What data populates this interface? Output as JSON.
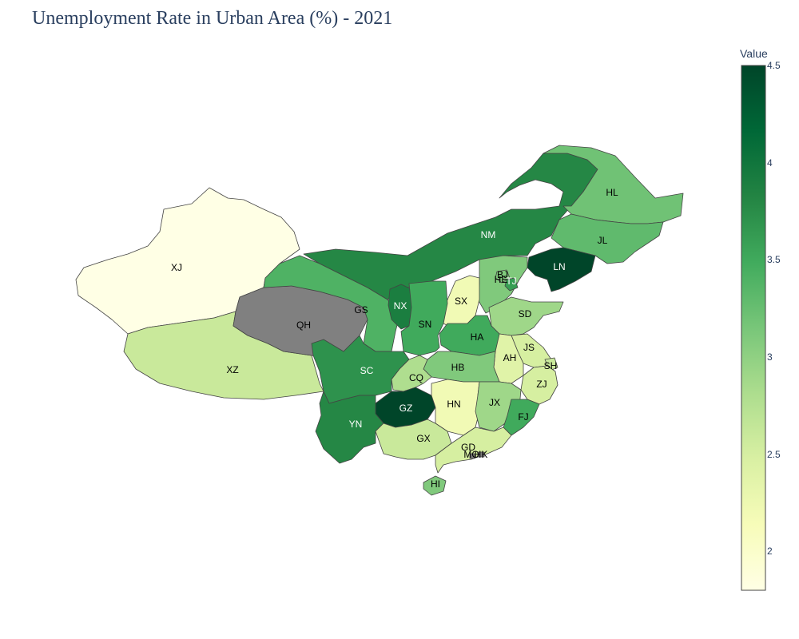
{
  "title": "Unemployment Rate in Urban Area (%) - 2021",
  "colorbar": {
    "title": "Value",
    "min": 1.8,
    "max": 4.5,
    "ticks": [
      "2",
      "2.5",
      "3",
      "3.5",
      "4",
      "4.5"
    ],
    "tick_values": [
      2,
      2.5,
      3,
      3.5,
      4,
      4.5
    ],
    "colorscale": [
      "#ffffe5",
      "#f7fcb9",
      "#d9f0a3",
      "#addd8e",
      "#78c679",
      "#41ab5d",
      "#238443",
      "#006837",
      "#004529"
    ],
    "missing_color": "#808080"
  },
  "regions": [
    {
      "code": "XJ",
      "value": 1.8
    },
    {
      "code": "XZ",
      "value": 2.6
    },
    {
      "code": "QH",
      "value": null
    },
    {
      "code": "GS",
      "value": 3.4
    },
    {
      "code": "NM",
      "value": 3.8
    },
    {
      "code": "HL",
      "value": 3.2
    },
    {
      "code": "JL",
      "value": 3.3
    },
    {
      "code": "LN",
      "value": 4.5
    },
    {
      "code": "BJ",
      "value": 3.1
    },
    {
      "code": "TJ",
      "value": 3.6
    },
    {
      "code": "HE",
      "value": 3.1
    },
    {
      "code": "SX",
      "value": 2.2
    },
    {
      "code": "NX",
      "value": 3.9
    },
    {
      "code": "SN",
      "value": 3.5
    },
    {
      "code": "SD",
      "value": 2.9
    },
    {
      "code": "HA",
      "value": 3.5
    },
    {
      "code": "JS",
      "value": 2.5
    },
    {
      "code": "AH",
      "value": 2.4
    },
    {
      "code": "SH",
      "value": 2.6
    },
    {
      "code": "HB",
      "value": 3.1
    },
    {
      "code": "ZJ",
      "value": 2.5
    },
    {
      "code": "SC",
      "value": 3.7
    },
    {
      "code": "CQ",
      "value": 2.8
    },
    {
      "code": "GZ",
      "value": 4.5
    },
    {
      "code": "HN",
      "value": 2.2
    },
    {
      "code": "JX",
      "value": 2.9
    },
    {
      "code": "FJ",
      "value": 3.5
    },
    {
      "code": "YN",
      "value": 3.8
    },
    {
      "code": "GX",
      "value": 2.6
    },
    {
      "code": "GD",
      "value": 2.5
    },
    {
      "code": "HK",
      "value": null
    },
    {
      "code": "MO",
      "value": null
    },
    {
      "code": "HI",
      "value": 3.1
    }
  ]
}
